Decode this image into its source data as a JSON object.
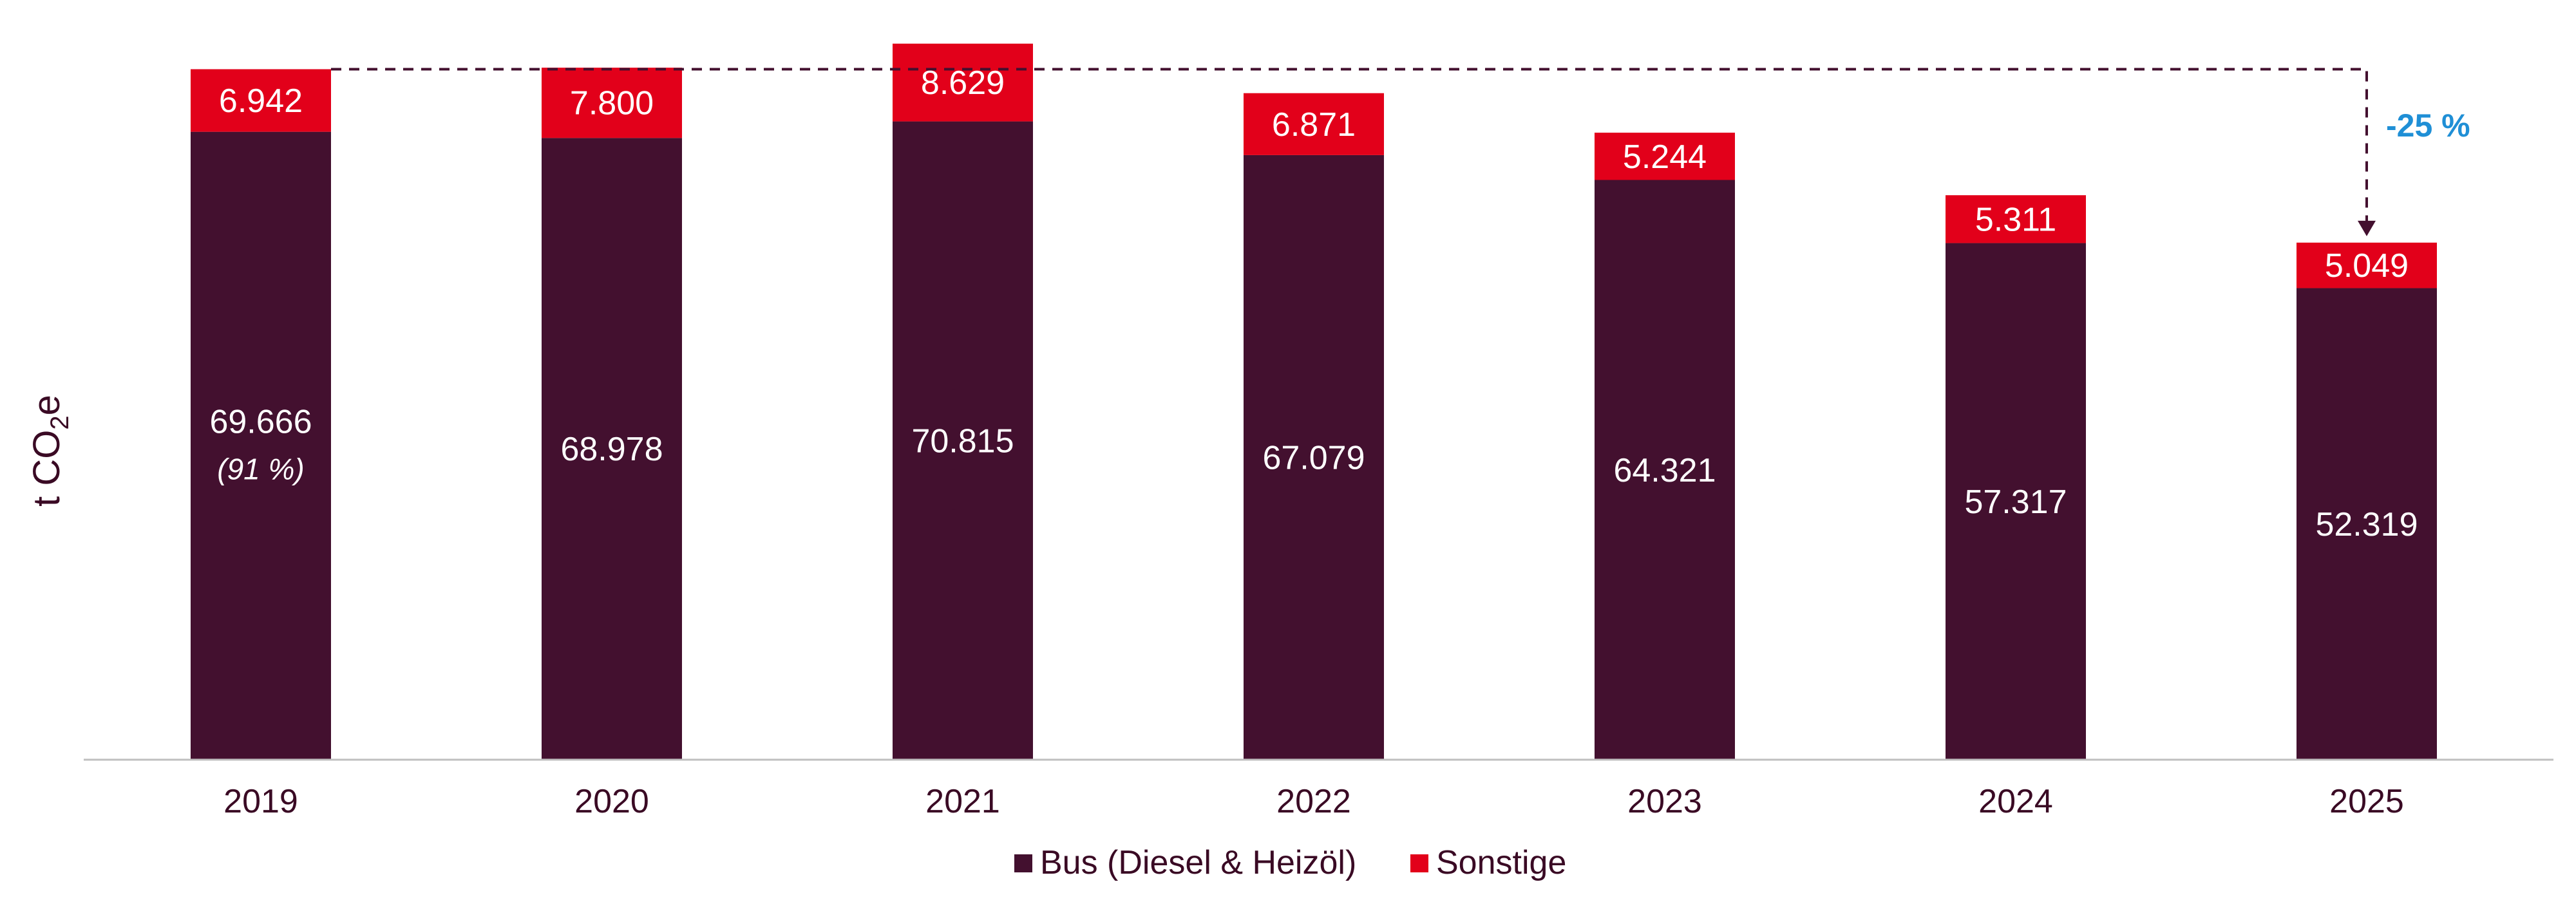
{
  "chart_data": {
    "type": "bar",
    "stacked": true,
    "categories": [
      "2019",
      "2020",
      "2021",
      "2022",
      "2023",
      "2024",
      "2025"
    ],
    "series": [
      {
        "name": "Bus (Diesel & Heizöl)",
        "color": "#43102f",
        "values": [
          69666,
          68978,
          70815,
          67079,
          64321,
          57317,
          52319
        ],
        "labels": [
          "69.666",
          "68.978",
          "70.815",
          "67.079",
          "64.321",
          "57.317",
          "52.319"
        ]
      },
      {
        "name": "Sonstige",
        "color": "#e2001a",
        "values": [
          6942,
          7800,
          8629,
          6871,
          5244,
          5311,
          5049
        ],
        "labels": [
          "6.942",
          "7.800",
          "8.629",
          "6.871",
          "5.244",
          "5.311",
          "5.049"
        ]
      }
    ],
    "share_note": "(91 %)",
    "ylabel": "t CO",
    "ylabel_subscript": "2",
    "ylabel_suffix": "e",
    "annotation": "-25 %",
    "annotation_color": "#1f8fd6",
    "legend_position": "bottom",
    "grid": false,
    "ylim": [
      0,
      80000
    ]
  }
}
